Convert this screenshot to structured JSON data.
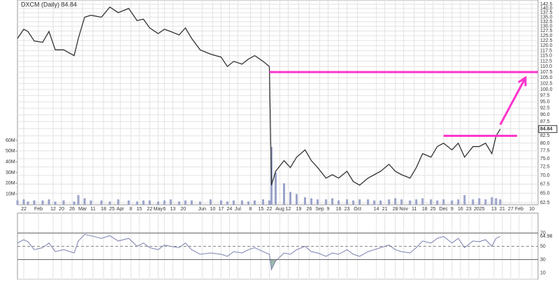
{
  "chart_data": {
    "type": "line",
    "title": "DXCM (Daily) 84.84",
    "last_label": "84.84",
    "color": "#333333",
    "log_scale": true,
    "grid": true,
    "x": [
      0,
      3,
      5,
      8,
      12,
      15,
      18,
      22,
      27,
      29,
      32,
      35,
      40,
      44,
      48,
      53,
      57,
      60,
      63,
      67,
      70,
      73,
      77,
      80,
      83,
      87,
      92,
      97,
      100,
      103,
      107,
      110,
      113,
      117,
      120,
      121,
      123,
      127,
      130,
      133,
      137,
      140,
      143,
      147,
      150,
      153,
      157,
      160,
      163,
      167,
      170,
      173,
      177,
      180,
      183,
      187,
      190,
      193,
      197,
      200,
      203,
      207,
      210,
      213,
      217,
      220,
      223,
      226,
      228,
      230
    ],
    "values": [
      123.6,
      128.4,
      127.2,
      122.3,
      121.6,
      127.2,
      117.9,
      117.9,
      115.1,
      123.6,
      135.0,
      136.1,
      135.0,
      140.8,
      137.6,
      140.0,
      133.1,
      133.9,
      129.1,
      126.1,
      128.4,
      127.2,
      125.4,
      129.1,
      123.6,
      117.9,
      115.8,
      114.4,
      110.0,
      112.4,
      111.1,
      113.4,
      115.1,
      112.4,
      110.0,
      67.2,
      71.2,
      74.4,
      72.3,
      75.5,
      77.8,
      74.4,
      72.3,
      69.2,
      70.2,
      69.2,
      71.2,
      68.2,
      67.2,
      69.2,
      70.2,
      71.2,
      73.3,
      71.2,
      70.2,
      69.2,
      72.3,
      76.6,
      75.5,
      78.9,
      80.0,
      77.8,
      80.0,
      75.5,
      78.9,
      78.9,
      80.0,
      76.6,
      82.4,
      84.84
    ],
    "xlim": [
      0,
      248
    ],
    "xticks": [
      {
        "value": 3,
        "label": "22"
      },
      {
        "value": 10,
        "label": "Feb"
      },
      {
        "value": 17,
        "label": "12"
      },
      {
        "value": 21,
        "label": "20"
      },
      {
        "value": 26,
        "label": "26"
      },
      {
        "value": 31,
        "label": "Mar"
      },
      {
        "value": 36,
        "label": "11"
      },
      {
        "value": 41,
        "label": "18"
      },
      {
        "value": 45,
        "label": "25"
      },
      {
        "value": 49,
        "label": "Apr"
      },
      {
        "value": 54,
        "label": "8"
      },
      {
        "value": 58,
        "label": "15"
      },
      {
        "value": 63,
        "label": "22"
      },
      {
        "value": 67,
        "label": "May"
      },
      {
        "value": 70,
        "label": "6"
      },
      {
        "value": 74,
        "label": "13"
      },
      {
        "value": 79,
        "label": "20"
      },
      {
        "value": 88,
        "label": "Jun"
      },
      {
        "value": 93,
        "label": "10"
      },
      {
        "value": 97,
        "label": "17"
      },
      {
        "value": 101,
        "label": "24"
      },
      {
        "value": 105,
        "label": "Jul"
      },
      {
        "value": 111,
        "label": "8"
      },
      {
        "value": 116,
        "label": "15"
      },
      {
        "value": 120,
        "label": "22"
      },
      {
        "value": 125,
        "label": "Aug"
      },
      {
        "value": 129,
        "label": "12"
      },
      {
        "value": 134,
        "label": "19"
      },
      {
        "value": 139,
        "label": "26"
      },
      {
        "value": 144,
        "label": "Sep"
      },
      {
        "value": 148,
        "label": "9"
      },
      {
        "value": 153,
        "label": "16"
      },
      {
        "value": 157,
        "label": "23"
      },
      {
        "value": 162,
        "label": "Oct"
      },
      {
        "value": 171,
        "label": "14"
      },
      {
        "value": 175,
        "label": "21"
      },
      {
        "value": 180,
        "label": "28"
      },
      {
        "value": 184,
        "label": "Nov"
      },
      {
        "value": 189,
        "label": "11"
      },
      {
        "value": 194,
        "label": "18"
      },
      {
        "value": 198,
        "label": "25"
      },
      {
        "value": 203,
        "label": "Dec"
      },
      {
        "value": 207,
        "label": "9"
      },
      {
        "value": 211,
        "label": "16"
      },
      {
        "value": 215,
        "label": "23"
      },
      {
        "value": 220,
        "label": "2025"
      },
      {
        "value": 227,
        "label": "13"
      },
      {
        "value": 231,
        "label": "21"
      },
      {
        "value": 235,
        "label": "27"
      },
      {
        "value": 239,
        "label": "Feb"
      },
      {
        "value": 245,
        "label": "10"
      }
    ],
    "ylim": [
      62.5,
      145
    ],
    "yticks": [
      62.5,
      {
        "value": 65,
        "label": "65.0"
      },
      67.5,
      {
        "value": 70,
        "label": "70.0"
      },
      72.5,
      {
        "value": 75,
        "label": "75.0"
      },
      77.5,
      {
        "value": 80,
        "label": "80.0"
      },
      82.5,
      {
        "value": 85,
        "label": "85.0"
      },
      87.5,
      {
        "value": 90,
        "label": "90.0"
      },
      92.5,
      {
        "value": 95,
        "label": "95.0"
      },
      97.5,
      {
        "value": 100,
        "label": "100.0"
      },
      102.5,
      {
        "value": 105,
        "label": "105.0"
      },
      107.5,
      {
        "value": 110,
        "label": "110.0"
      },
      112.5,
      {
        "value": 115,
        "label": "115.0"
      },
      117.5,
      {
        "value": 120,
        "label": "120.0"
      },
      122.5,
      {
        "value": 125,
        "label": "125.0"
      },
      127.5,
      {
        "value": 130,
        "label": "130.0"
      },
      132.5,
      {
        "value": 135,
        "label": "135.0"
      },
      137.5,
      {
        "value": 140,
        "label": "140.0"
      },
      142.5
    ],
    "volume": {
      "color": "#9aa3c9",
      "values": [
        4,
        5,
        3,
        4,
        4,
        5,
        3,
        4,
        3,
        9,
        6,
        4,
        4,
        3,
        5,
        4,
        3,
        4,
        4,
        3,
        4,
        5,
        3,
        4,
        4,
        3,
        5,
        4,
        3,
        4,
        4,
        3,
        4,
        5,
        4,
        54,
        30,
        20,
        12,
        10,
        7,
        6,
        5,
        5,
        6,
        4,
        5,
        4,
        5,
        5,
        4,
        4,
        5,
        6,
        5,
        4,
        5,
        6,
        5,
        4,
        5,
        4,
        5,
        9,
        5,
        6,
        5,
        7,
        6,
        5
      ],
      "ylim": [
        0,
        60
      ],
      "yticks": [
        {
          "value": 10,
          "label": "10M"
        },
        {
          "value": 20,
          "label": "20M"
        },
        {
          "value": 30,
          "label": "30M"
        },
        {
          "value": 40,
          "label": "40M"
        },
        {
          "value": 50,
          "label": "50M"
        },
        {
          "value": 60,
          "label": "60M"
        }
      ]
    },
    "rsi": {
      "color": "#7a80b0",
      "values": [
        55,
        60,
        57,
        45,
        48,
        55,
        42,
        45,
        40,
        58,
        68,
        66,
        62,
        66,
        58,
        62,
        50,
        55,
        48,
        45,
        52,
        50,
        48,
        55,
        45,
        38,
        40,
        38,
        35,
        42,
        40,
        45,
        48,
        42,
        38,
        15,
        28,
        40,
        38,
        45,
        50,
        42,
        40,
        35,
        40,
        38,
        45,
        38,
        35,
        42,
        45,
        48,
        52,
        45,
        42,
        40,
        48,
        58,
        55,
        62,
        65,
        55,
        62,
        48,
        58,
        57,
        60,
        50,
        62,
        64.98
      ],
      "last_label": "64.98",
      "ylim": [
        0,
        100
      ],
      "yticks": [
        10,
        30,
        50,
        70
      ],
      "levels": [
        30,
        70
      ],
      "midline": 50
    },
    "annotations": [
      {
        "kind": "hline",
        "color": "#ff33cc",
        "y": 107.5,
        "x": [
          120,
          248
        ]
      },
      {
        "kind": "hline",
        "color": "#ff33cc",
        "y": 82.5,
        "x": [
          203,
          238
        ]
      },
      {
        "kind": "arrow",
        "color": "#ff33cc",
        "x": [
          230,
          242
        ],
        "y": [
          86.4,
          105
        ]
      }
    ]
  }
}
